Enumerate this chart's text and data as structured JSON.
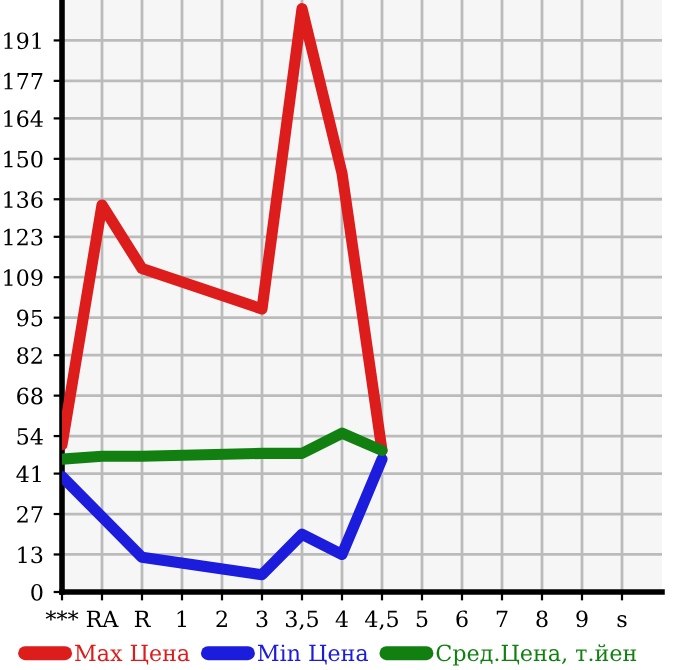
{
  "chart_data": {
    "type": "line",
    "categories": [
      "***",
      "RA",
      "R",
      "1",
      "2",
      "3",
      "3,5",
      "4",
      "4,5",
      "5",
      "6",
      "7",
      "8",
      "9",
      "s"
    ],
    "series": [
      {
        "name": "Max Цена",
        "color": "#dd1c1c",
        "values": [
          51,
          134,
          112,
          null,
          null,
          98,
          202,
          145,
          49,
          null,
          null,
          null,
          null,
          null,
          null
        ]
      },
      {
        "name": "Min Цена",
        "color": "#1c1cdd",
        "values": [
          40,
          26,
          12,
          null,
          null,
          6,
          20,
          13,
          46,
          null,
          null,
          null,
          null,
          null,
          null
        ]
      },
      {
        "name": "Сред.Цена, т.йен",
        "color": "#118011",
        "values": [
          46,
          47,
          47,
          null,
          null,
          48,
          48,
          55,
          49,
          null,
          null,
          null,
          null,
          null,
          null
        ]
      }
    ],
    "ylim": [
      0,
      205
    ],
    "yticks": [
      0,
      13,
      27,
      41,
      54,
      68,
      82,
      95,
      109,
      123,
      136,
      150,
      164,
      177,
      191
    ],
    "grid": true,
    "legend": "bottom",
    "marker": "none",
    "line_style": "solid"
  }
}
